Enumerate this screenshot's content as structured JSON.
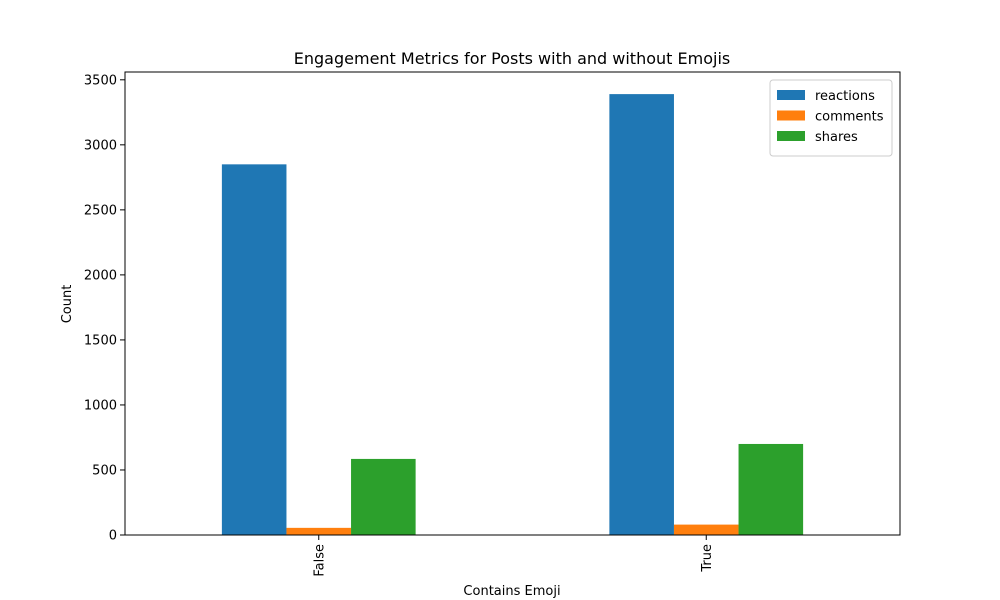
{
  "chart_data": {
    "type": "bar",
    "title": "Engagement Metrics for Posts with and without Emojis",
    "xlabel": "Contains Emoji",
    "ylabel": "Count",
    "categories": [
      "False",
      "True"
    ],
    "series": [
      {
        "name": "reactions",
        "color": "#1f77b4",
        "values": [
          2850,
          3390
        ]
      },
      {
        "name": "comments",
        "color": "#ff7f0e",
        "values": [
          55,
          80
        ]
      },
      {
        "name": "shares",
        "color": "#2ca02c",
        "values": [
          585,
          700
        ]
      }
    ],
    "ylim": [
      0,
      3560
    ],
    "yticks": [
      0,
      500,
      1000,
      1500,
      2000,
      2500,
      3000,
      3500
    ],
    "grid": false,
    "legend_position": "top-right"
  }
}
